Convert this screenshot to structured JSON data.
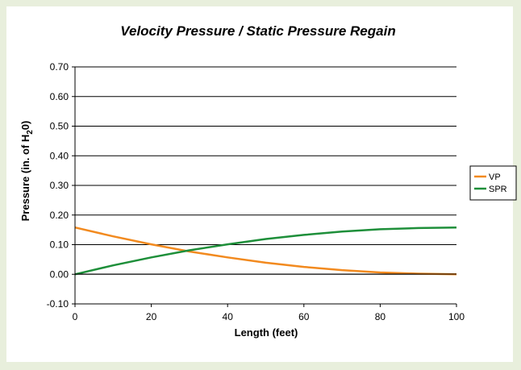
{
  "chart_data": {
    "type": "line",
    "title": "Velocity Pressure / Static Pressure Regain",
    "xlabel": "Length (feet)",
    "ylabel": {
      "main": "Pressure (in. of H",
      "sub": "2",
      "tail": "0)"
    },
    "xlim": [
      0,
      100
    ],
    "ylim": [
      -0.1,
      0.7
    ],
    "x_ticks": [
      "0",
      "20",
      "40",
      "60",
      "80",
      "100"
    ],
    "y_ticks": [
      "0.70",
      "0.60",
      "0.50",
      "0.40",
      "0.30",
      "0.20",
      "0.10",
      "0.00",
      "-0.10"
    ],
    "grid": "horizontal",
    "legend_position": "right",
    "x": [
      0,
      10,
      20,
      30,
      40,
      50,
      60,
      70,
      80,
      90,
      100
    ],
    "series": [
      {
        "name": "VP",
        "color": "#f28a1f",
        "values": [
          0.158,
          0.128,
          0.101,
          0.077,
          0.057,
          0.039,
          0.025,
          0.014,
          0.006,
          0.002,
          0.0
        ]
      },
      {
        "name": "SPR",
        "color": "#1e8f3a",
        "values": [
          0.0,
          0.03,
          0.057,
          0.081,
          0.101,
          0.119,
          0.133,
          0.144,
          0.152,
          0.156,
          0.158
        ]
      }
    ]
  }
}
